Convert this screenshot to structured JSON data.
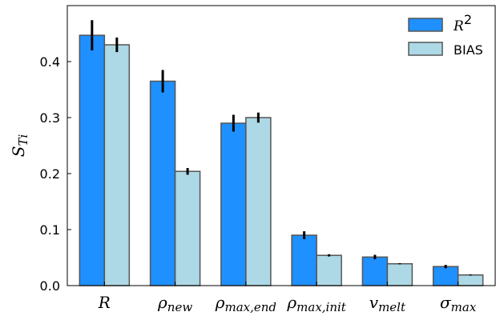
{
  "chart_data": {
    "type": "bar",
    "categories": [
      "R",
      "ρ_new",
      "ρ_max,end",
      "ρ_max,init",
      "v_melt",
      "σ_max"
    ],
    "category_labels": [
      {
        "base": "R",
        "sub": ""
      },
      {
        "base": "ρ",
        "sub": "new"
      },
      {
        "base": "ρ",
        "sub": "max,end"
      },
      {
        "base": "ρ",
        "sub": "max,init"
      },
      {
        "base": "v",
        "sub": "melt"
      },
      {
        "base": "σ",
        "sub": "max"
      }
    ],
    "series": [
      {
        "name": "R²",
        "name_base": "R",
        "name_sup": "2",
        "color": "#1e90ff",
        "values": [
          0.447,
          0.365,
          0.29,
          0.09,
          0.051,
          0.034
        ],
        "errors": [
          0.027,
          0.02,
          0.015,
          0.007,
          0.004,
          0.003
        ]
      },
      {
        "name": "BIAS",
        "color": "#add8e6",
        "values": [
          0.43,
          0.204,
          0.3,
          0.054,
          0.039,
          0.019
        ],
        "errors": [
          0.013,
          0.006,
          0.009,
          0.002,
          0.001,
          0.001
        ]
      }
    ],
    "ylabel_base": "S",
    "ylabel_sub": "Ti",
    "ylim": [
      0,
      0.5
    ],
    "yticks": [
      "0.0",
      "0.1",
      "0.2",
      "0.3",
      "0.4"
    ],
    "grid": false,
    "legend": "top-right",
    "bar_edge_color": "#555555"
  }
}
